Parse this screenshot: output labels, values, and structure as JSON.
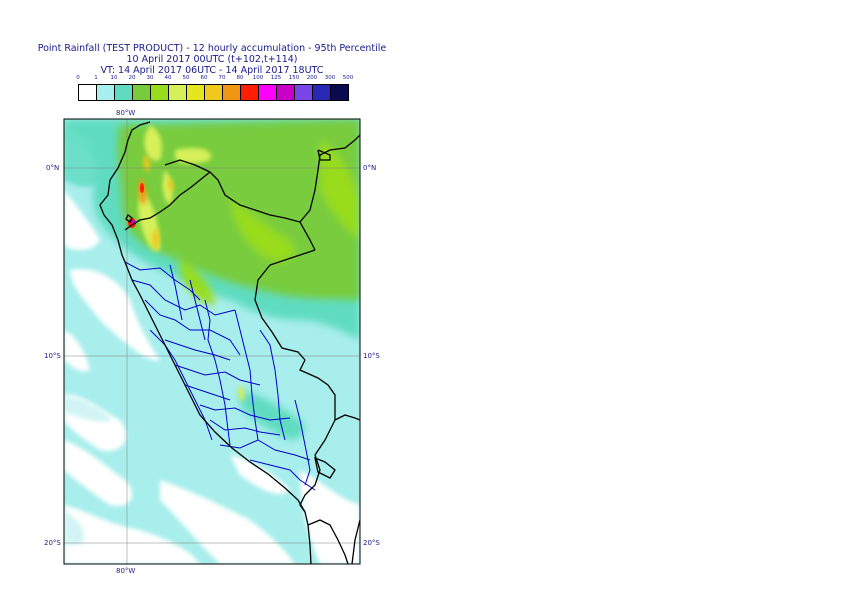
{
  "title": {
    "line1": "Point Rainfall (TEST PRODUCT) - 12 hourly accumulation - 95th Percentile",
    "line2": "10 April 2017 00UTC (t+102,t+114)",
    "line3": "VT: 14 April 2017 06UTC - 14 April 2017 18UTC"
  },
  "legend": {
    "thresholds": [
      "0",
      "1",
      "10",
      "20",
      "30",
      "40",
      "50",
      "60",
      "70",
      "80",
      "100",
      "125",
      "150",
      "200",
      "300",
      "500"
    ],
    "colors": [
      "#ffffff",
      "#a8f0ee",
      "#5fdcc0",
      "#78cc3c",
      "#98dc1e",
      "#d6f05a",
      "#e6e61e",
      "#f0c81e",
      "#f09614",
      "#ff1e00",
      "#ff00ff",
      "#c800c8",
      "#7846e6",
      "#2828b4",
      "#0a0a50"
    ]
  },
  "axes": {
    "lon_top": "80°W",
    "lon_bottom": "80°W",
    "lat_left": [
      "0°N",
      "10°S",
      "20°S"
    ],
    "lat_right": [
      "0°N",
      "10°S",
      "20°S"
    ]
  },
  "colors": {
    "ocean_light": "#c8f2f2",
    "ocean_mid": "#a8eeec",
    "text": "#1a1a8c",
    "border_country": "#000000",
    "border_region": "#0000cc"
  }
}
